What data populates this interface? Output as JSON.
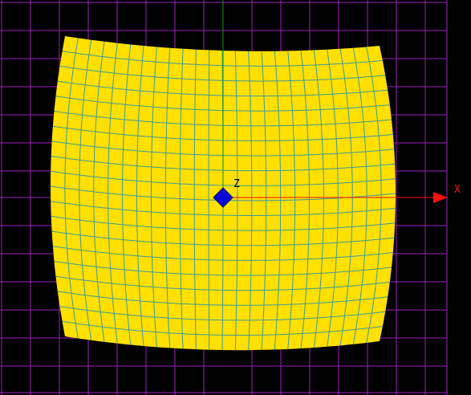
{
  "viewport": {
    "background": "#000000",
    "grid_color": "#a020c0",
    "mesh_fill": "#ffe000",
    "mesh_line": "#3a9b9b",
    "pivot_color": "#0b0bd8",
    "y_axis_color": "#00a000",
    "x_axis_color": "#ff1010",
    "z_label_color": "#e0e0e0"
  },
  "axes": {
    "x_label": "X",
    "z_label": "Z"
  },
  "mesh": {
    "columns": 24,
    "rows": 20
  }
}
